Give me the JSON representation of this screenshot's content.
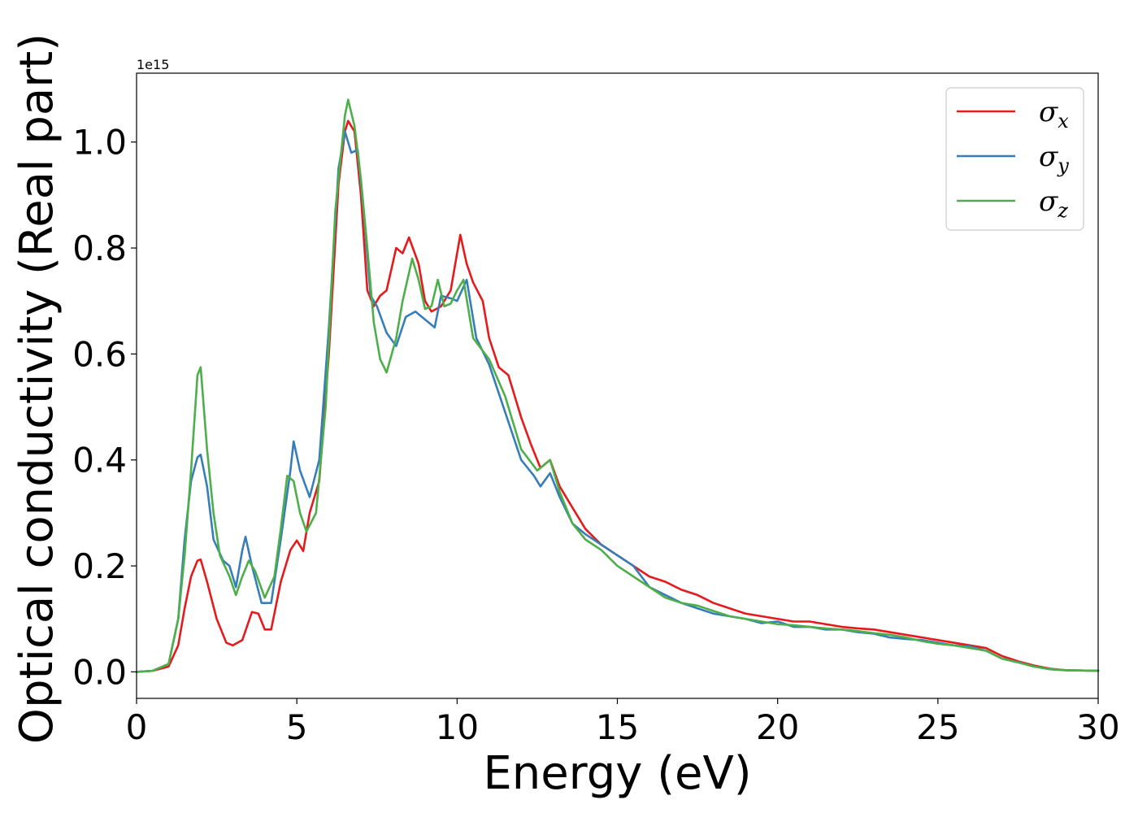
{
  "chart_data": {
    "type": "line",
    "title": "",
    "xlabel": "Energy (eV)",
    "ylabel": "Optical conductivity (Real part)",
    "offset_text": "1e15",
    "xlim": [
      0,
      30
    ],
    "ylim": [
      -0.05,
      1.13
    ],
    "xticks": [
      0,
      5,
      10,
      15,
      20,
      25,
      30
    ],
    "yticks": [
      0.0,
      0.2,
      0.4,
      0.6,
      0.8,
      1.0
    ],
    "xtick_labels": [
      "0",
      "5",
      "10",
      "15",
      "20",
      "25",
      "30"
    ],
    "ytick_labels": [
      "0.0",
      "0.2",
      "0.4",
      "0.6",
      "0.8",
      "1.0"
    ],
    "grid": false,
    "legend_position": "upper-right",
    "series": [
      {
        "name": "σx",
        "legend_symbol": "σ",
        "legend_subscript": "x",
        "color": "#e41a1c",
        "points": [
          [
            0,
            0
          ],
          [
            0.5,
            0.002
          ],
          [
            1,
            0.01
          ],
          [
            1.3,
            0.05
          ],
          [
            1.5,
            0.12
          ],
          [
            1.7,
            0.18
          ],
          [
            1.9,
            0.21
          ],
          [
            2,
            0.212
          ],
          [
            2.2,
            0.17
          ],
          [
            2.5,
            0.1
          ],
          [
            2.8,
            0.055
          ],
          [
            3,
            0.05
          ],
          [
            3.3,
            0.06
          ],
          [
            3.6,
            0.113
          ],
          [
            3.8,
            0.11
          ],
          [
            4,
            0.08
          ],
          [
            4.2,
            0.08
          ],
          [
            4.5,
            0.17
          ],
          [
            4.8,
            0.23
          ],
          [
            5,
            0.248
          ],
          [
            5.2,
            0.228
          ],
          [
            5.4,
            0.3
          ],
          [
            5.7,
            0.36
          ],
          [
            6,
            0.6
          ],
          [
            6.3,
            0.92
          ],
          [
            6.5,
            1.02
          ],
          [
            6.6,
            1.04
          ],
          [
            6.8,
            1.02
          ],
          [
            7,
            0.9
          ],
          [
            7.2,
            0.72
          ],
          [
            7.4,
            0.69
          ],
          [
            7.6,
            0.71
          ],
          [
            7.8,
            0.72
          ],
          [
            8.1,
            0.8
          ],
          [
            8.3,
            0.79
          ],
          [
            8.5,
            0.82
          ],
          [
            8.8,
            0.77
          ],
          [
            9,
            0.7
          ],
          [
            9.2,
            0.68
          ],
          [
            9.5,
            0.69
          ],
          [
            9.8,
            0.72
          ],
          [
            10.1,
            0.825
          ],
          [
            10.3,
            0.77
          ],
          [
            10.5,
            0.735
          ],
          [
            10.8,
            0.7
          ],
          [
            11,
            0.63
          ],
          [
            11.3,
            0.575
          ],
          [
            11.6,
            0.56
          ],
          [
            12,
            0.48
          ],
          [
            12.3,
            0.43
          ],
          [
            12.6,
            0.385
          ],
          [
            12.9,
            0.4
          ],
          [
            13.2,
            0.35
          ],
          [
            13.6,
            0.31
          ],
          [
            14,
            0.27
          ],
          [
            14.5,
            0.24
          ],
          [
            15,
            0.22
          ],
          [
            15.5,
            0.2
          ],
          [
            16,
            0.18
          ],
          [
            16.5,
            0.17
          ],
          [
            17,
            0.155
          ],
          [
            17.5,
            0.145
          ],
          [
            18,
            0.13
          ],
          [
            18.5,
            0.12
          ],
          [
            19,
            0.11
          ],
          [
            19.5,
            0.105
          ],
          [
            20,
            0.1
          ],
          [
            20.5,
            0.095
          ],
          [
            21,
            0.095
          ],
          [
            21.5,
            0.09
          ],
          [
            22,
            0.085
          ],
          [
            22.5,
            0.082
          ],
          [
            23,
            0.08
          ],
          [
            23.5,
            0.075
          ],
          [
            24,
            0.07
          ],
          [
            24.5,
            0.065
          ],
          [
            25,
            0.06
          ],
          [
            25.5,
            0.055
          ],
          [
            26,
            0.05
          ],
          [
            26.5,
            0.045
          ],
          [
            27,
            0.03
          ],
          [
            27.5,
            0.02
          ],
          [
            28,
            0.012
          ],
          [
            28.5,
            0.006
          ],
          [
            29,
            0.003
          ],
          [
            30,
            0.002
          ]
        ]
      },
      {
        "name": "σy",
        "legend_symbol": "σ",
        "legend_subscript": "y",
        "color": "#377eb8",
        "points": [
          [
            0,
            0
          ],
          [
            0.5,
            0.002
          ],
          [
            1,
            0.015
          ],
          [
            1.3,
            0.1
          ],
          [
            1.5,
            0.25
          ],
          [
            1.7,
            0.36
          ],
          [
            1.9,
            0.405
          ],
          [
            2,
            0.41
          ],
          [
            2.2,
            0.35
          ],
          [
            2.4,
            0.25
          ],
          [
            2.7,
            0.21
          ],
          [
            2.9,
            0.2
          ],
          [
            3.1,
            0.16
          ],
          [
            3.3,
            0.23
          ],
          [
            3.4,
            0.255
          ],
          [
            3.6,
            0.2
          ],
          [
            3.9,
            0.13
          ],
          [
            4.2,
            0.13
          ],
          [
            4.5,
            0.25
          ],
          [
            4.8,
            0.38
          ],
          [
            4.9,
            0.435
          ],
          [
            5.1,
            0.38
          ],
          [
            5.4,
            0.33
          ],
          [
            5.7,
            0.4
          ],
          [
            6,
            0.65
          ],
          [
            6.3,
            0.95
          ],
          [
            6.5,
            1.02
          ],
          [
            6.7,
            0.98
          ],
          [
            6.9,
            0.985
          ],
          [
            7.1,
            0.86
          ],
          [
            7.3,
            0.71
          ],
          [
            7.5,
            0.69
          ],
          [
            7.8,
            0.64
          ],
          [
            8.1,
            0.615
          ],
          [
            8.4,
            0.67
          ],
          [
            8.7,
            0.68
          ],
          [
            9,
            0.665
          ],
          [
            9.3,
            0.65
          ],
          [
            9.5,
            0.71
          ],
          [
            9.8,
            0.705
          ],
          [
            10,
            0.7
          ],
          [
            10.3,
            0.74
          ],
          [
            10.6,
            0.63
          ],
          [
            11,
            0.58
          ],
          [
            11.5,
            0.49
          ],
          [
            12,
            0.4
          ],
          [
            12.4,
            0.37
          ],
          [
            12.6,
            0.35
          ],
          [
            12.9,
            0.375
          ],
          [
            13.2,
            0.33
          ],
          [
            13.6,
            0.28
          ],
          [
            14,
            0.26
          ],
          [
            14.5,
            0.24
          ],
          [
            15,
            0.22
          ],
          [
            15.5,
            0.2
          ],
          [
            16,
            0.16
          ],
          [
            16.5,
            0.145
          ],
          [
            17,
            0.13
          ],
          [
            17.5,
            0.12
          ],
          [
            18,
            0.11
          ],
          [
            18.5,
            0.105
          ],
          [
            19,
            0.1
          ],
          [
            19.5,
            0.092
          ],
          [
            20,
            0.095
          ],
          [
            20.5,
            0.085
          ],
          [
            21,
            0.085
          ],
          [
            21.5,
            0.08
          ],
          [
            22,
            0.08
          ],
          [
            22.5,
            0.075
          ],
          [
            23,
            0.072
          ],
          [
            23.5,
            0.065
          ],
          [
            24,
            0.062
          ],
          [
            24.5,
            0.06
          ],
          [
            25,
            0.055
          ],
          [
            25.5,
            0.05
          ],
          [
            26,
            0.048
          ],
          [
            26.5,
            0.04
          ],
          [
            27,
            0.025
          ],
          [
            27.5,
            0.018
          ],
          [
            28,
            0.01
          ],
          [
            28.5,
            0.005
          ],
          [
            29,
            0.003
          ],
          [
            30,
            0.002
          ]
        ]
      },
      {
        "name": "σz",
        "legend_symbol": "σ",
        "legend_subscript": "z",
        "color": "#4daf4a",
        "points": [
          [
            0,
            0
          ],
          [
            0.5,
            0.002
          ],
          [
            1,
            0.015
          ],
          [
            1.3,
            0.1
          ],
          [
            1.5,
            0.22
          ],
          [
            1.7,
            0.38
          ],
          [
            1.9,
            0.56
          ],
          [
            2,
            0.575
          ],
          [
            2.2,
            0.42
          ],
          [
            2.4,
            0.3
          ],
          [
            2.6,
            0.22
          ],
          [
            2.9,
            0.18
          ],
          [
            3.1,
            0.145
          ],
          [
            3.3,
            0.18
          ],
          [
            3.5,
            0.21
          ],
          [
            3.7,
            0.19
          ],
          [
            4,
            0.14
          ],
          [
            4.3,
            0.18
          ],
          [
            4.5,
            0.27
          ],
          [
            4.7,
            0.37
          ],
          [
            4.9,
            0.36
          ],
          [
            5.1,
            0.3
          ],
          [
            5.3,
            0.265
          ],
          [
            5.6,
            0.3
          ],
          [
            5.9,
            0.5
          ],
          [
            6.2,
            0.87
          ],
          [
            6.5,
            1.05
          ],
          [
            6.6,
            1.08
          ],
          [
            6.8,
            1.03
          ],
          [
            7,
            0.93
          ],
          [
            7.2,
            0.8
          ],
          [
            7.4,
            0.66
          ],
          [
            7.6,
            0.59
          ],
          [
            7.8,
            0.565
          ],
          [
            8.1,
            0.63
          ],
          [
            8.3,
            0.7
          ],
          [
            8.6,
            0.78
          ],
          [
            8.8,
            0.74
          ],
          [
            9,
            0.685
          ],
          [
            9.2,
            0.69
          ],
          [
            9.4,
            0.74
          ],
          [
            9.6,
            0.69
          ],
          [
            9.8,
            0.695
          ],
          [
            10,
            0.72
          ],
          [
            10.2,
            0.74
          ],
          [
            10.5,
            0.63
          ],
          [
            11,
            0.59
          ],
          [
            11.5,
            0.52
          ],
          [
            12,
            0.42
          ],
          [
            12.5,
            0.38
          ],
          [
            12.9,
            0.4
          ],
          [
            13.2,
            0.34
          ],
          [
            13.6,
            0.28
          ],
          [
            14,
            0.25
          ],
          [
            14.5,
            0.23
          ],
          [
            15,
            0.2
          ],
          [
            15.5,
            0.18
          ],
          [
            16,
            0.16
          ],
          [
            16.5,
            0.14
          ],
          [
            17,
            0.13
          ],
          [
            17.5,
            0.125
          ],
          [
            18,
            0.115
          ],
          [
            18.5,
            0.105
          ],
          [
            19,
            0.1
          ],
          [
            19.5,
            0.095
          ],
          [
            20,
            0.09
          ],
          [
            20.5,
            0.088
          ],
          [
            21,
            0.085
          ],
          [
            21.5,
            0.082
          ],
          [
            22,
            0.08
          ],
          [
            22.5,
            0.077
          ],
          [
            23,
            0.073
          ],
          [
            23.5,
            0.07
          ],
          [
            24,
            0.065
          ],
          [
            24.5,
            0.058
          ],
          [
            25,
            0.053
          ],
          [
            25.5,
            0.05
          ],
          [
            26,
            0.045
          ],
          [
            26.5,
            0.04
          ],
          [
            27,
            0.025
          ],
          [
            27.5,
            0.018
          ],
          [
            28,
            0.01
          ],
          [
            28.5,
            0.005
          ],
          [
            29,
            0.003
          ],
          [
            30,
            0.002
          ]
        ]
      }
    ]
  }
}
